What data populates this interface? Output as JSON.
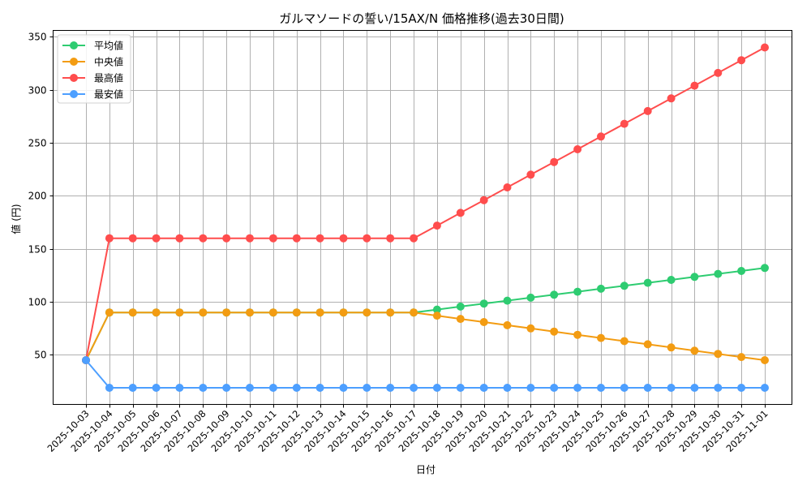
{
  "chart_data": {
    "type": "line",
    "title": "ガルマソードの誓い/15AX/N 価格推移(過去30日間)",
    "xlabel": "日付",
    "ylabel": "値 (円)",
    "ylim": [
      3.3,
      356.1
    ],
    "yticks": [
      50,
      100,
      150,
      200,
      250,
      300,
      350
    ],
    "grid": true,
    "legend_position": "upper left",
    "x": [
      "2025-10-03",
      "2025-10-04",
      "2025-10-05",
      "2025-10-06",
      "2025-10-07",
      "2025-10-08",
      "2025-10-09",
      "2025-10-10",
      "2025-10-11",
      "2025-10-12",
      "2025-10-13",
      "2025-10-14",
      "2025-10-15",
      "2025-10-16",
      "2025-10-17",
      "2025-10-18",
      "2025-10-19",
      "2025-10-20",
      "2025-10-21",
      "2025-10-22",
      "2025-10-23",
      "2025-10-24",
      "2025-10-25",
      "2025-10-26",
      "2025-10-27",
      "2025-10-28",
      "2025-10-29",
      "2025-10-30",
      "2025-10-31",
      "2025-11-01"
    ],
    "series": [
      {
        "name": "平均値",
        "color": "#2ecc71",
        "values": [
          45,
          90,
          90,
          90,
          90,
          90,
          90,
          90,
          90,
          90,
          90,
          90,
          90,
          90,
          90,
          92.8,
          95.6,
          98.4,
          101.2,
          104,
          106.8,
          109.6,
          112.4,
          115.2,
          118,
          120.8,
          123.6,
          126.4,
          129.2,
          132
        ]
      },
      {
        "name": "中央値",
        "color": "#f39c12",
        "values": [
          45,
          90,
          90,
          90,
          90,
          90,
          90,
          90,
          90,
          90,
          90,
          90,
          90,
          90,
          90,
          87,
          84,
          81,
          78,
          75,
          72,
          69,
          66,
          63,
          60,
          57,
          54,
          51,
          48,
          45
        ]
      },
      {
        "name": "最高値",
        "color": "#ff4d4d",
        "values": [
          45,
          160,
          160,
          160,
          160,
          160,
          160,
          160,
          160,
          160,
          160,
          160,
          160,
          160,
          160,
          172,
          184,
          196,
          208,
          220,
          232,
          244,
          256,
          268,
          280,
          292,
          304,
          316,
          328,
          340
        ]
      },
      {
        "name": "最安値",
        "color": "#4d9fff",
        "values": [
          45,
          19,
          19,
          19,
          19,
          19,
          19,
          19,
          19,
          19,
          19,
          19,
          19,
          19,
          19,
          19,
          19,
          19,
          19,
          19,
          19,
          19,
          19,
          19,
          19,
          19,
          19,
          19,
          19,
          19
        ]
      }
    ]
  }
}
